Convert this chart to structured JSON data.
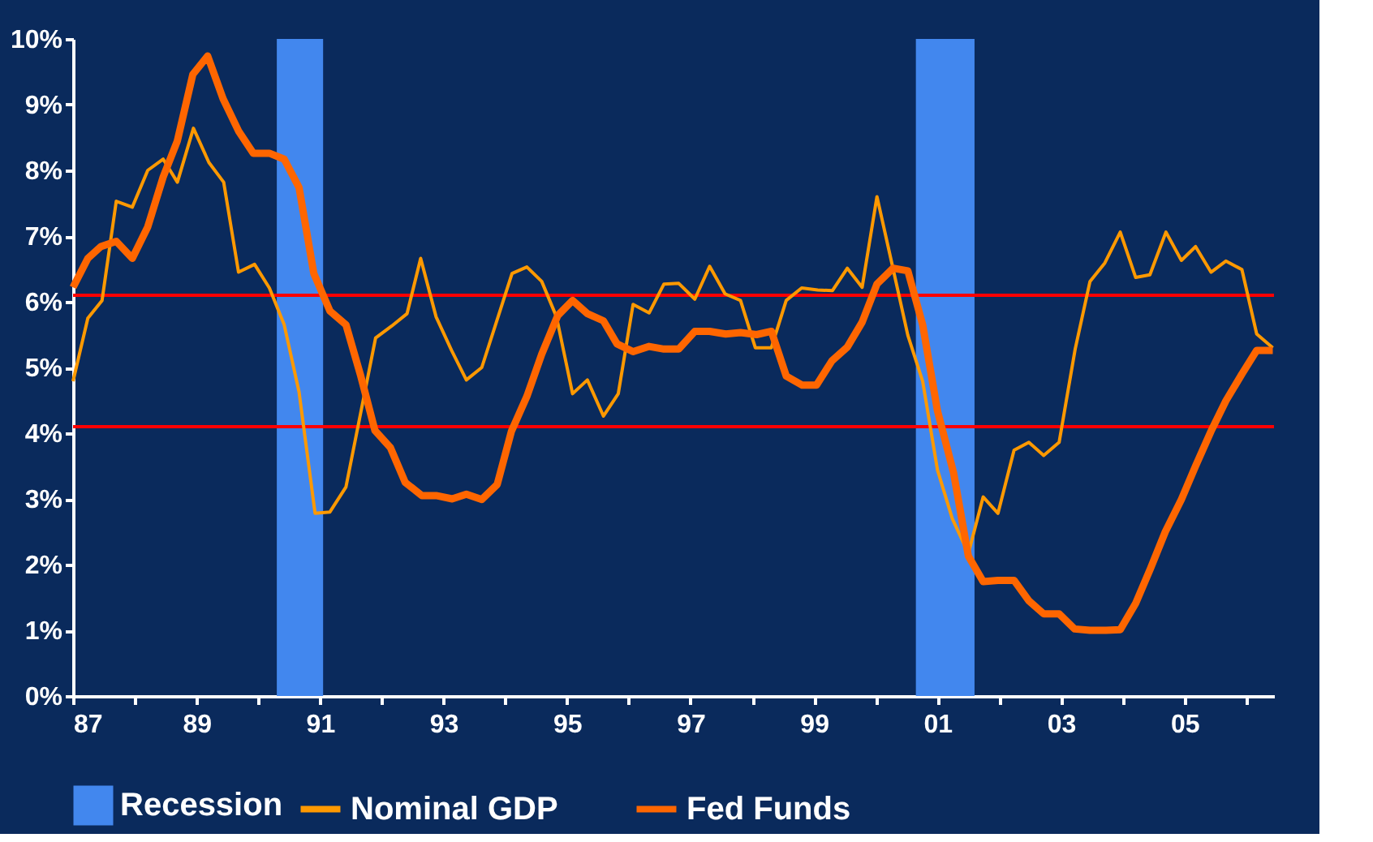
{
  "chart_data": {
    "type": "line",
    "xlim": [
      1987,
      2006.45
    ],
    "xticks": [
      {
        "value": 1987,
        "label": "87"
      },
      {
        "value": 1988,
        "label": null
      },
      {
        "value": 1989,
        "label": "89"
      },
      {
        "value": 1990,
        "label": null
      },
      {
        "value": 1991,
        "label": "91"
      },
      {
        "value": 1992,
        "label": null
      },
      {
        "value": 1993,
        "label": "93"
      },
      {
        "value": 1994,
        "label": null
      },
      {
        "value": 1995,
        "label": "95"
      },
      {
        "value": 1996,
        "label": null
      },
      {
        "value": 1997,
        "label": "97"
      },
      {
        "value": 1998,
        "label": null
      },
      {
        "value": 1999,
        "label": "99"
      },
      {
        "value": 2000,
        "label": null
      },
      {
        "value": 2001,
        "label": "01"
      },
      {
        "value": 2002,
        "label": null
      },
      {
        "value": 2003,
        "label": "03"
      },
      {
        "value": 2004,
        "label": null
      },
      {
        "value": 2005,
        "label": "05"
      },
      {
        "value": 2006,
        "label": null
      }
    ],
    "ylim": [
      0,
      10
    ],
    "yticks": [
      {
        "value": 0,
        "label": "0%"
      },
      {
        "value": 1,
        "label": "1%"
      },
      {
        "value": 2,
        "label": "2%"
      },
      {
        "value": 3,
        "label": "3%"
      },
      {
        "value": 4,
        "label": "4%"
      },
      {
        "value": 5,
        "label": "5%"
      },
      {
        "value": 6,
        "label": "6%"
      },
      {
        "value": 7,
        "label": "7%"
      },
      {
        "value": 8,
        "label": "8%"
      },
      {
        "value": 9,
        "label": "9%"
      },
      {
        "value": 10,
        "label": "10%"
      }
    ],
    "grid": false,
    "legend": "bottom",
    "bands": [
      {
        "axis": "x",
        "from": 1990.3,
        "to": 1991.05,
        "label": "Recession",
        "color": "#4287ee"
      },
      {
        "axis": "x",
        "from": 2000.65,
        "to": 2001.6,
        "color": "#4287ee"
      }
    ],
    "ref_lines": [
      {
        "axis": "y",
        "value": 6.1,
        "color": "#ff0000"
      },
      {
        "axis": "y",
        "value": 4.1,
        "color": "#ff0000"
      }
    ],
    "series": [
      {
        "name": "Nominal GDP",
        "color": "#ff9900",
        "x": [
          1987.0,
          1987.24,
          1987.47,
          1987.7,
          1987.96,
          1988.21,
          1988.46,
          1988.69,
          1988.95,
          1989.2,
          1989.44,
          1989.68,
          1989.94,
          1990.18,
          1990.42,
          1990.66,
          1990.92,
          1991.16,
          1991.42,
          1991.64,
          1991.9,
          1992.16,
          1992.41,
          1992.63,
          1992.88,
          1993.13,
          1993.37,
          1993.62,
          1993.87,
          1994.11,
          1994.35,
          1994.59,
          1994.83,
          1995.09,
          1995.33,
          1995.59,
          1995.83,
          1996.07,
          1996.33,
          1996.57,
          1996.81,
          1997.07,
          1997.31,
          1997.56,
          1997.81,
          1998.05,
          1998.31,
          1998.55,
          1998.8,
          1999.06,
          1999.3,
          1999.54,
          1999.78,
          2000.02,
          2000.26,
          2000.52,
          2000.76,
          2001.0,
          2001.24,
          2001.5,
          2001.74,
          2001.98,
          2002.24,
          2002.48,
          2002.72,
          2002.97,
          2003.23,
          2003.47,
          2003.71,
          2003.96,
          2004.21,
          2004.44,
          2004.7,
          2004.95,
          2005.18,
          2005.43,
          2005.67,
          2005.93,
          2006.17,
          2006.43
        ],
        "values": [
          4.79,
          5.75,
          6.02,
          7.53,
          7.44,
          8.0,
          8.17,
          7.82,
          8.64,
          8.12,
          7.82,
          6.45,
          6.57,
          6.21,
          5.65,
          4.63,
          2.78,
          2.8,
          3.18,
          4.22,
          5.45,
          5.63,
          5.82,
          6.66,
          5.77,
          5.26,
          4.81,
          5.0,
          5.73,
          6.43,
          6.53,
          6.31,
          5.77,
          4.6,
          4.81,
          4.26,
          4.6,
          5.96,
          5.83,
          6.27,
          6.28,
          6.04,
          6.54,
          6.12,
          6.02,
          5.3,
          5.3,
          6.02,
          6.21,
          6.18,
          6.17,
          6.51,
          6.22,
          7.6,
          6.59,
          5.49,
          4.79,
          3.44,
          2.7,
          2.17,
          3.03,
          2.78,
          3.74,
          3.86,
          3.66,
          3.86,
          5.28,
          6.31,
          6.59,
          7.06,
          6.37,
          6.41,
          7.06,
          6.63,
          6.84,
          6.45,
          6.62,
          6.49,
          5.51,
          5.3
        ]
      },
      {
        "name": "Fed Funds",
        "color": "#ff6600",
        "x": [
          1987.0,
          1987.24,
          1987.45,
          1987.7,
          1987.96,
          1988.21,
          1988.46,
          1988.69,
          1988.94,
          1989.18,
          1989.43,
          1989.68,
          1989.92,
          1990.18,
          1990.42,
          1990.66,
          1990.9,
          1991.16,
          1991.42,
          1991.66,
          1991.89,
          1992.14,
          1992.38,
          1992.65,
          1992.88,
          1993.14,
          1993.37,
          1993.62,
          1993.87,
          1994.1,
          1994.35,
          1994.59,
          1994.85,
          1995.09,
          1995.33,
          1995.59,
          1995.81,
          1996.07,
          1996.33,
          1996.57,
          1996.81,
          1997.07,
          1997.31,
          1997.57,
          1997.81,
          1998.07,
          1998.31,
          1998.55,
          1998.81,
          1999.04,
          1999.29,
          1999.54,
          1999.78,
          2000.02,
          2000.28,
          2000.52,
          2000.76,
          2001.0,
          2001.26,
          2001.5,
          2001.74,
          2001.98,
          2002.24,
          2002.48,
          2002.72,
          2002.97,
          2003.22,
          2003.47,
          2003.73,
          2003.96,
          2004.21,
          2004.45,
          2004.69,
          2004.95,
          2005.18,
          2005.43,
          2005.67,
          2005.93,
          2006.17,
          2006.43
        ],
        "values": [
          6.22,
          6.66,
          6.84,
          6.92,
          6.66,
          7.14,
          7.9,
          8.45,
          9.46,
          9.74,
          9.09,
          8.6,
          8.26,
          8.26,
          8.17,
          7.74,
          6.43,
          5.86,
          5.65,
          4.87,
          4.04,
          3.78,
          3.25,
          3.05,
          3.05,
          3.0,
          3.07,
          2.99,
          3.22,
          4.03,
          4.56,
          5.2,
          5.79,
          6.02,
          5.82,
          5.71,
          5.36,
          5.24,
          5.32,
          5.28,
          5.28,
          5.55,
          5.55,
          5.51,
          5.53,
          5.5,
          5.55,
          4.87,
          4.73,
          4.73,
          5.1,
          5.31,
          5.69,
          6.27,
          6.51,
          6.47,
          5.65,
          4.34,
          3.4,
          2.13,
          1.74,
          1.76,
          1.76,
          1.45,
          1.25,
          1.25,
          1.02,
          1.0,
          1.0,
          1.01,
          1.41,
          1.94,
          2.5,
          2.99,
          3.5,
          4.03,
          4.49,
          4.9,
          5.26,
          5.26
        ]
      }
    ]
  }
}
